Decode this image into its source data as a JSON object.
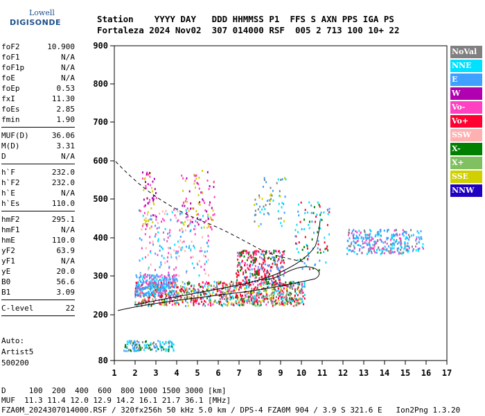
{
  "logo": {
    "line1": "Lowell",
    "line2": "DIGISONDE"
  },
  "header": {
    "line1": "Station    YYYY DAY   DDD HHMMSS P1  FFS S AXN PPS IGA PS",
    "line2": "Fortaleza 2024 Nov02  307 014000 RSF  005 2 713 100 10+ 22"
  },
  "params": {
    "group1": [
      {
        "k": "foF2",
        "v": "10.900"
      },
      {
        "k": "foF1",
        "v": "N/A"
      },
      {
        "k": "foF1p",
        "v": "N/A"
      },
      {
        "k": "foE",
        "v": "N/A"
      },
      {
        "k": "foEp",
        "v": "0.53"
      },
      {
        "k": "fxI",
        "v": "11.30"
      },
      {
        "k": "foEs",
        "v": "2.85"
      },
      {
        "k": "fmin",
        "v": "1.90"
      }
    ],
    "group2": [
      {
        "k": "MUF(D)",
        "v": "36.06"
      },
      {
        "k": "M(D)",
        "v": "3.31"
      },
      {
        "k": "D",
        "v": "N/A"
      }
    ],
    "group3": [
      {
        "k": "h`F",
        "v": "232.0"
      },
      {
        "k": "h`F2",
        "v": "232.0"
      },
      {
        "k": "h`E",
        "v": "N/A"
      },
      {
        "k": "h`Es",
        "v": "110.0"
      }
    ],
    "group4": [
      {
        "k": "hmF2",
        "v": "295.1"
      },
      {
        "k": "hmF1",
        "v": "N/A"
      },
      {
        "k": "hmE",
        "v": "110.0"
      },
      {
        "k": "yF2",
        "v": "63.9"
      },
      {
        "k": "yF1",
        "v": "N/A"
      },
      {
        "k": "yE",
        "v": "20.0"
      },
      {
        "k": "B0",
        "v": "56.6"
      },
      {
        "k": "B1",
        "v": "3.09"
      }
    ],
    "group5": [
      {
        "k": "C-level",
        "v": "22"
      }
    ]
  },
  "extra": {
    "line1": "Auto:",
    "line2": "Artist5",
    "line3": "500200"
  },
  "legend": [
    {
      "label": "NoVal",
      "color": "#808080"
    },
    {
      "label": "NNE",
      "color": "#00e0ff"
    },
    {
      "label": "E",
      "color": "#40a0ff"
    },
    {
      "label": "W",
      "color": "#b000b0"
    },
    {
      "label": "Vo-",
      "color": "#ff40c0"
    },
    {
      "label": "Vo+",
      "color": "#ff0030"
    },
    {
      "label": "SSW",
      "color": "#ffb0b0"
    },
    {
      "label": "X-",
      "color": "#008000"
    },
    {
      "label": "X+",
      "color": "#80c060"
    },
    {
      "label": "SSE",
      "color": "#d0d000"
    },
    {
      "label": "NNW",
      "color": "#2000c0"
    }
  ],
  "axes": {
    "x_ticks": [
      "1",
      "2",
      "3",
      "4",
      "5",
      "6",
      "7",
      "8",
      "9",
      "10",
      "11",
      "12",
      "13",
      "14",
      "15",
      "16",
      "17"
    ],
    "y_ticks": [
      "80",
      "200",
      "300",
      "400",
      "500",
      "600",
      "700",
      "800",
      "900"
    ]
  },
  "footer": {
    "line1": "D     100  200  400  600  800 1000 1500 3000 [km]",
    "line2": "MUF  11.3 11.4 12.0 12.9 14.2 16.1 21.7 36.1 [MHz]",
    "line3": "FZA0M_2024307014000.RSF / 320fx256h 50 kHz 5.0 km / DPS-4 FZA0M 904 / 3.9 S 321.6 E   Ion2Png 1.3.20"
  }
}
